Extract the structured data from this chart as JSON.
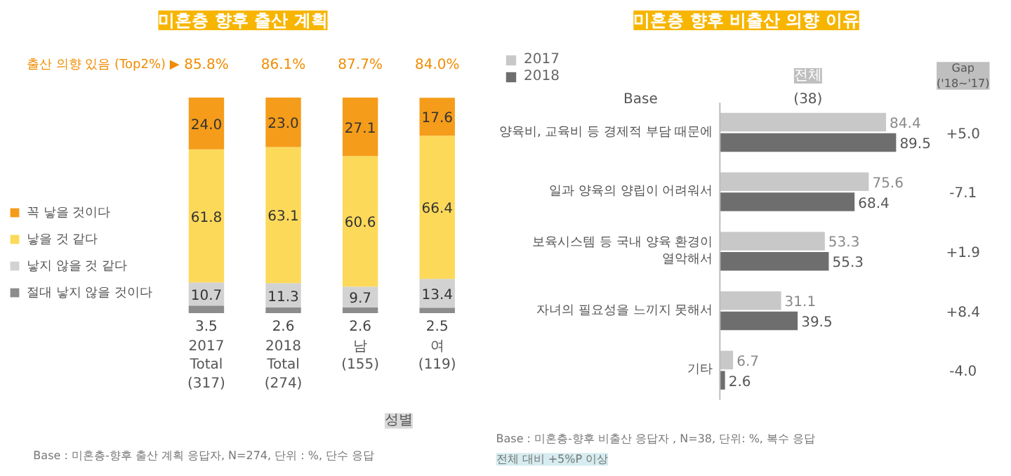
{
  "chart_data": [
    {
      "type": "bar",
      "title": "미혼층 향후 출산 계획",
      "stacked": true,
      "data_labels": true,
      "legend": "left",
      "grid": false,
      "categories": [
        "2017\nTotal\n(317)",
        "2018\nTotal\n(274)",
        "남\n(155)",
        "여\n(119)"
      ],
      "series": [
        {
          "name": "절대 낳지 않을 것이다",
          "color": "#8c8c8c",
          "values": [
            3.5,
            2.6,
            2.6,
            2.5
          ],
          "value_labels": [
            "3.5",
            "2.6",
            "2.6",
            "2.5"
          ]
        },
        {
          "name": "낳지 않을 것 같다",
          "color": "#d2d2d2",
          "values": [
            10.7,
            11.3,
            9.7,
            13.4
          ],
          "value_labels": [
            "10.7",
            "11.3",
            "9.7",
            "13.4"
          ]
        },
        {
          "name": "낳을 것 같다",
          "color": "#fdd95a",
          "values": [
            61.8,
            63.1,
            60.6,
            66.4
          ],
          "value_labels": [
            "61.8",
            "63.1",
            "60.6",
            "66.4"
          ]
        },
        {
          "name": "꼭 낳을 것이다",
          "color": "#f59c1a",
          "values": [
            24.0,
            23.0,
            27.1,
            17.6
          ],
          "value_labels": [
            "24.0",
            "23.0",
            "27.1",
            "17.6"
          ]
        }
      ],
      "annotations": [
        "출산 의향 있음 (Top2%) ▶",
        "85.8%",
        "86.1%",
        "87.7%",
        "84.0%",
        "성별",
        "Base : 미혼층-향후 출산 계획 응답자, N=274, 단위 : %, 단수 응답"
      ]
    },
    {
      "type": "bar",
      "title": "미혼층 향후 비출산 의향 이유",
      "orientation": "horizontal",
      "data_labels": true,
      "legend": "top left",
      "grid": false,
      "categories": [
        "양육비, 교육비 등 경제적 부담 때문에",
        "일과 양육의 양립이 어려워서",
        "보육시스템 등 국내 양육 환경이\n열악해서",
        "자녀의 필요성을 느끼지 못해서",
        "기타"
      ],
      "series": [
        {
          "name": "2017",
          "color": "#c8c8c8",
          "values": [
            84.4,
            75.6,
            53.3,
            31.1,
            6.7
          ]
        },
        {
          "name": "2018",
          "color": "#6e6e6e",
          "values": [
            89.5,
            68.4,
            55.3,
            39.5,
            2.6
          ]
        }
      ],
      "annotations": [
        "전체",
        "Gap\n('18~'17)",
        "Base",
        "(38)",
        "+5.0",
        "-7.1",
        "+1.9",
        "+8.4",
        "-4.0",
        "Base : 미혼층-향후 비출산 응답자 , N=38, 단위: %, 복수 응답",
        "전체 대비 +5%P 이상"
      ]
    }
  ]
}
